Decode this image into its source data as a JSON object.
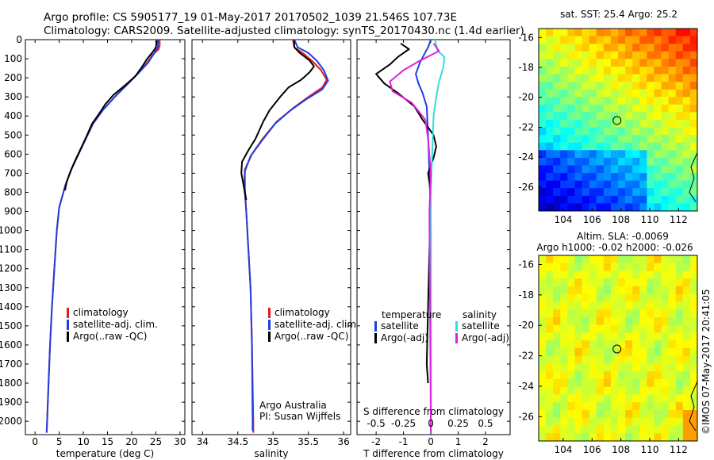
{
  "header": {
    "title_line1": "Argo profile: CS 5905177_19 01-May-2017 20170502_1039 21.546S 107.73E",
    "title_line2": "Climatology: CARS2009. Satellite-adjusted climatology: synTS_20170430.nc (1.4d earlier)"
  },
  "colors": {
    "climatology": "#e41a1c",
    "satellite": "#1f3fe0",
    "argo": "#000000",
    "cyan": "#33dddd",
    "magenta": "#e020e0"
  },
  "y_ticks": [
    0,
    100,
    200,
    300,
    400,
    500,
    600,
    700,
    800,
    900,
    1000,
    1100,
    1200,
    1300,
    1400,
    1500,
    1600,
    1700,
    1800,
    1900,
    2000
  ],
  "chart_data": [
    {
      "type": "line",
      "xlabel": "temperature (deg C)",
      "xticks": [
        0,
        5,
        10,
        15,
        20,
        25,
        30
      ],
      "xlim": [
        -2,
        31
      ],
      "ylim": [
        2070,
        0
      ],
      "legend": [
        "climatology",
        "satellite-adj. clim.",
        "Argo(..raw -QC)"
      ],
      "series": [
        {
          "name": "climatology",
          "key": "climatology",
          "points": [
            [
              25.8,
              0
            ],
            [
              25.8,
              30
            ],
            [
              25.6,
              50
            ],
            [
              24.3,
              80
            ],
            [
              23.2,
              120
            ],
            [
              21.5,
              170
            ],
            [
              19.3,
              230
            ],
            [
              16.5,
              300
            ],
            [
              14,
              370
            ],
            [
              12,
              440
            ],
            [
              10.5,
              520
            ],
            [
              9,
              600
            ],
            [
              7.5,
              680
            ],
            [
              6.3,
              760
            ],
            [
              5,
              880
            ],
            [
              4.5,
              1000
            ],
            [
              4,
              1200
            ],
            [
              3.5,
              1400
            ],
            [
              3.1,
              1600
            ],
            [
              2.8,
              1800
            ],
            [
              2.5,
              2000
            ],
            [
              2.4,
              2060
            ]
          ]
        },
        {
          "name": "satellite-adj. clim.",
          "key": "satellite",
          "points": [
            [
              25.5,
              0
            ],
            [
              25.4,
              40
            ],
            [
              24.7,
              70
            ],
            [
              23.4,
              120
            ],
            [
              21.6,
              170
            ],
            [
              19.3,
              230
            ],
            [
              16.5,
              300
            ],
            [
              14,
              370
            ],
            [
              12,
              440
            ],
            [
              10.5,
              520
            ],
            [
              9,
              600
            ],
            [
              7.5,
              680
            ],
            [
              6.3,
              760
            ],
            [
              5,
              880
            ],
            [
              4.5,
              1000
            ],
            [
              4,
              1200
            ],
            [
              3.5,
              1400
            ],
            [
              3.1,
              1600
            ],
            [
              2.8,
              1800
            ],
            [
              2.5,
              2000
            ],
            [
              2.4,
              2060
            ]
          ]
        },
        {
          "name": "Argo(..raw -QC)",
          "key": "argo",
          "points": [
            [
              25.2,
              5
            ],
            [
              25,
              40
            ],
            [
              24.5,
              60
            ],
            [
              23.2,
              100
            ],
            [
              22.2,
              140
            ],
            [
              20.8,
              190
            ],
            [
              18.6,
              240
            ],
            [
              16.2,
              290
            ],
            [
              14.5,
              340
            ],
            [
              13.2,
              390
            ],
            [
              11.8,
              440
            ],
            [
              10.6,
              510
            ],
            [
              9.3,
              580
            ],
            [
              8,
              650
            ],
            [
              7.2,
              700
            ],
            [
              6.5,
              750
            ],
            [
              6.2,
              790
            ]
          ]
        }
      ]
    },
    {
      "type": "line",
      "xlabel": "salinity",
      "xticks": [
        34,
        34.5,
        35,
        35.5,
        36
      ],
      "xlim": [
        33.85,
        36.1
      ],
      "ylim": [
        2070,
        0
      ],
      "legend": [
        "climatology",
        "satellite-adj. clim.",
        "Argo(..raw -QC)"
      ],
      "annotation": [
        "Argo Australia",
        "PI: Susan Wijffels"
      ],
      "series": [
        {
          "name": "climatology",
          "key": "climatology",
          "points": [
            [
              35.28,
              0
            ],
            [
              35.3,
              40
            ],
            [
              35.42,
              70
            ],
            [
              35.55,
              110
            ],
            [
              35.68,
              160
            ],
            [
              35.76,
              210
            ],
            [
              35.7,
              250
            ],
            [
              35.5,
              300
            ],
            [
              35.28,
              360
            ],
            [
              35.05,
              430
            ],
            [
              34.85,
              520
            ],
            [
              34.7,
              600
            ],
            [
              34.6,
              680
            ],
            [
              34.59,
              760
            ],
            [
              34.62,
              900
            ],
            [
              34.65,
              1100
            ],
            [
              34.68,
              1300
            ],
            [
              34.7,
              1600
            ],
            [
              34.72,
              2000
            ],
            [
              34.72,
              2060
            ]
          ]
        },
        {
          "name": "satellite-adj. clim.",
          "key": "satellite",
          "points": [
            [
              35.3,
              0
            ],
            [
              35.35,
              40
            ],
            [
              35.5,
              70
            ],
            [
              35.62,
              110
            ],
            [
              35.72,
              160
            ],
            [
              35.78,
              215
            ],
            [
              35.7,
              260
            ],
            [
              35.48,
              310
            ],
            [
              35.25,
              370
            ],
            [
              35.03,
              440
            ],
            [
              34.84,
              530
            ],
            [
              34.68,
              610
            ],
            [
              34.6,
              690
            ],
            [
              34.6,
              780
            ],
            [
              34.62,
              900
            ],
            [
              34.65,
              1100
            ],
            [
              34.68,
              1300
            ],
            [
              34.7,
              1600
            ],
            [
              34.71,
              2000
            ],
            [
              34.71,
              2050
            ]
          ]
        },
        {
          "name": "Argo(..raw -QC)",
          "key": "argo",
          "points": [
            [
              35.3,
              5
            ],
            [
              35.3,
              40
            ],
            [
              35.38,
              70
            ],
            [
              35.52,
              110
            ],
            [
              35.58,
              140
            ],
            [
              35.52,
              170
            ],
            [
              35.4,
              210
            ],
            [
              35.22,
              250
            ],
            [
              35.1,
              300
            ],
            [
              34.95,
              370
            ],
            [
              34.86,
              430
            ],
            [
              34.75,
              520
            ],
            [
              34.65,
              580
            ],
            [
              34.56,
              640
            ],
            [
              34.55,
              700
            ],
            [
              34.58,
              760
            ],
            [
              34.62,
              840
            ]
          ]
        }
      ]
    },
    {
      "type": "line",
      "xlabel": "T difference from climatology",
      "xlabel_top": "S difference from climatology",
      "xticks": [
        -2,
        -1,
        0,
        1,
        2
      ],
      "xticks_top": [
        "-0.5",
        "-0.25",
        "0",
        "0.25",
        "0.5"
      ],
      "xlim": [
        -2.7,
        2.9
      ],
      "ylim": [
        2070,
        0
      ],
      "legend_temperature_title": "temperature",
      "legend_salinity_title": "salinity",
      "legend": [
        "satellite",
        "Argo(-adj)",
        "satellite",
        "Argo(-adj)"
      ],
      "series": [
        {
          "name": "satellite",
          "key": "satellite",
          "points": [
            [
              0,
              0
            ],
            [
              -0.1,
              40
            ],
            [
              -0.25,
              80
            ],
            [
              -0.4,
              120
            ],
            [
              -0.55,
              180
            ],
            [
              -0.45,
              230
            ],
            [
              -0.3,
              280
            ],
            [
              -0.15,
              350
            ],
            [
              -0.1,
              500
            ],
            [
              -0.05,
              700
            ],
            [
              0,
              1000
            ],
            [
              0,
              2060
            ]
          ]
        },
        {
          "name": "Argo(-adj)",
          "key": "argo",
          "points": [
            [
              -1.1,
              20
            ],
            [
              -0.8,
              50
            ],
            [
              -1.2,
              90
            ],
            [
              -1.5,
              130
            ],
            [
              -2.0,
              180
            ],
            [
              -1.7,
              230
            ],
            [
              -1.2,
              280
            ],
            [
              -0.6,
              350
            ],
            [
              -0.3,
              420
            ],
            [
              0.1,
              500
            ],
            [
              0.2,
              560
            ],
            [
              0.1,
              620
            ],
            [
              -0.1,
              700
            ],
            [
              0,
              800
            ],
            [
              -0.1,
              1400
            ],
            [
              -0.15,
              1700
            ],
            [
              -0.1,
              1800
            ]
          ]
        },
        {
          "name": "satellite",
          "key": "cyan",
          "points": [
            [
              0.15,
              0
            ],
            [
              0.25,
              60
            ],
            [
              0.5,
              90
            ],
            [
              0.45,
              150
            ],
            [
              0.3,
              220
            ],
            [
              0.2,
              300
            ],
            [
              0.1,
              400
            ],
            [
              0.05,
              600
            ],
            [
              0,
              800
            ],
            [
              0,
              2060
            ]
          ]
        },
        {
          "name": "Argo(-adj)",
          "key": "magenta",
          "points": [
            [
              0.1,
              20
            ],
            [
              0.3,
              60
            ],
            [
              -0.4,
              110
            ],
            [
              -1.0,
              160
            ],
            [
              -1.5,
              220
            ],
            [
              -1.4,
              270
            ],
            [
              -0.7,
              330
            ],
            [
              -0.2,
              420
            ],
            [
              -0.1,
              520
            ],
            [
              0,
              700
            ],
            [
              -0.05,
              900
            ],
            [
              0,
              2060
            ]
          ]
        }
      ]
    }
  ],
  "maps": [
    {
      "type": "heatmap",
      "title": "sat. SST: 25.4 Argo: 25.2",
      "xticks": [
        "104",
        "106",
        "108",
        "110",
        "112"
      ],
      "yticks": [
        "-16",
        "-18",
        "-20",
        "-22",
        "-24",
        "-26"
      ],
      "palette": "jet",
      "marker": {
        "lon": 107.73,
        "lat": -21.55
      }
    },
    {
      "type": "heatmap",
      "title_line1": "Altim. SLA: -0.0069",
      "title_line2": "Argo h1000: -0.02 h2000: -0.026",
      "xticks": [
        "104",
        "106",
        "108",
        "110",
        "112"
      ],
      "yticks": [
        "-16",
        "-18",
        "-20",
        "-22",
        "-24",
        "-26"
      ],
      "palette": "green",
      "marker": {
        "lon": 107.73,
        "lat": -21.55
      }
    }
  ],
  "footer": {
    "credit": "©IMOS 07-May-2017 20:41:05"
  }
}
